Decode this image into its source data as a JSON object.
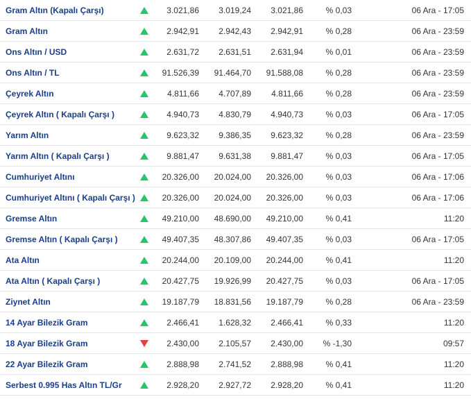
{
  "colors": {
    "link": "#1a3e8c",
    "up": "#27c46e",
    "down": "#e83b3b",
    "text": "#333333",
    "border": "#e5e5e5",
    "background": "#ffffff"
  },
  "rows": [
    {
      "name": "Gram Altın (Kapalı Çarşı)",
      "dir": "up",
      "v1": "3.021,86",
      "v2": "3.019,24",
      "v3": "3.021,86",
      "change": "% 0,03",
      "time": "06 Ara - 17:05"
    },
    {
      "name": "Gram Altın",
      "dir": "up",
      "v1": "2.942,91",
      "v2": "2.942,43",
      "v3": "2.942,91",
      "change": "% 0,28",
      "time": "06 Ara - 23:59"
    },
    {
      "name": "Ons Altın / USD",
      "dir": "up",
      "v1": "2.631,72",
      "v2": "2.631,51",
      "v3": "2.631,94",
      "change": "% 0,01",
      "time": "06 Ara - 23:59"
    },
    {
      "name": "Ons Altın / TL",
      "dir": "up",
      "v1": "91.526,39",
      "v2": "91.464,70",
      "v3": "91.588,08",
      "change": "% 0,28",
      "time": "06 Ara - 23:59"
    },
    {
      "name": "Çeyrek Altın",
      "dir": "up",
      "v1": "4.811,66",
      "v2": "4.707,89",
      "v3": "4.811,66",
      "change": "% 0,28",
      "time": "06 Ara - 23:59"
    },
    {
      "name": "Çeyrek Altın ( Kapalı Çarşı )",
      "dir": "up",
      "v1": "4.940,73",
      "v2": "4.830,79",
      "v3": "4.940,73",
      "change": "% 0,03",
      "time": "06 Ara - 17:05"
    },
    {
      "name": "Yarım Altın",
      "dir": "up",
      "v1": "9.623,32",
      "v2": "9.386,35",
      "v3": "9.623,32",
      "change": "% 0,28",
      "time": "06 Ara - 23:59"
    },
    {
      "name": "Yarım Altın ( Kapalı Çarşı )",
      "dir": "up",
      "v1": "9.881,47",
      "v2": "9.631,38",
      "v3": "9.881,47",
      "change": "% 0,03",
      "time": "06 Ara - 17:05"
    },
    {
      "name": "Cumhuriyet Altını",
      "dir": "up",
      "v1": "20.326,00",
      "v2": "20.024,00",
      "v3": "20.326,00",
      "change": "% 0,03",
      "time": "06 Ara - 17:06"
    },
    {
      "name": "Cumhuriyet Altını ( Kapalı Çarşı )",
      "dir": "up",
      "v1": "20.326,00",
      "v2": "20.024,00",
      "v3": "20.326,00",
      "change": "% 0,03",
      "time": "06 Ara - 17:06"
    },
    {
      "name": "Gremse Altın",
      "dir": "up",
      "v1": "49.210,00",
      "v2": "48.690,00",
      "v3": "49.210,00",
      "change": "% 0,41",
      "time": "11:20"
    },
    {
      "name": "Gremse Altın ( Kapalı Çarşı )",
      "dir": "up",
      "v1": "49.407,35",
      "v2": "48.307,86",
      "v3": "49.407,35",
      "change": "% 0,03",
      "time": "06 Ara - 17:05"
    },
    {
      "name": "Ata Altın",
      "dir": "up",
      "v1": "20.244,00",
      "v2": "20.109,00",
      "v3": "20.244,00",
      "change": "% 0,41",
      "time": "11:20"
    },
    {
      "name": "Ata Altın ( Kapalı Çarşı )",
      "dir": "up",
      "v1": "20.427,75",
      "v2": "19.926,99",
      "v3": "20.427,75",
      "change": "% 0,03",
      "time": "06 Ara - 17:05"
    },
    {
      "name": "Ziynet Altın",
      "dir": "up",
      "v1": "19.187,79",
      "v2": "18.831,56",
      "v3": "19.187,79",
      "change": "% 0,28",
      "time": "06 Ara - 23:59"
    },
    {
      "name": "14 Ayar Bilezik Gram",
      "dir": "up",
      "v1": "2.466,41",
      "v2": "1.628,32",
      "v3": "2.466,41",
      "change": "% 0,33",
      "time": "11:20"
    },
    {
      "name": "18 Ayar Bilezik Gram",
      "dir": "down",
      "v1": "2.430,00",
      "v2": "2.105,57",
      "v3": "2.430,00",
      "change": "% -1,30",
      "time": "09:57"
    },
    {
      "name": "22 Ayar Bilezik Gram",
      "dir": "up",
      "v1": "2.888,98",
      "v2": "2.741,52",
      "v3": "2.888,98",
      "change": "% 0,41",
      "time": "11:20"
    },
    {
      "name": "Serbest 0.995 Has Altın TL/Gr",
      "dir": "up",
      "v1": "2.928,20",
      "v2": "2.927,72",
      "v3": "2.928,20",
      "change": "% 0,41",
      "time": "11:20"
    }
  ]
}
